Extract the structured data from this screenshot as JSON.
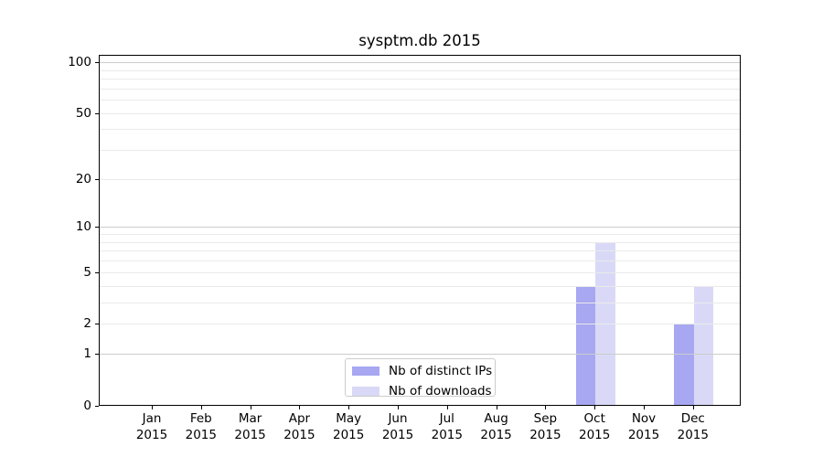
{
  "title": "sysptm.db 2015",
  "chart_data": {
    "type": "bar",
    "title": "sysptm.db 2015",
    "xlabel": "",
    "ylabel": "",
    "categories": [
      {
        "month": "Jan",
        "year": "2015"
      },
      {
        "month": "Feb",
        "year": "2015"
      },
      {
        "month": "Mar",
        "year": "2015"
      },
      {
        "month": "Apr",
        "year": "2015"
      },
      {
        "month": "May",
        "year": "2015"
      },
      {
        "month": "Jun",
        "year": "2015"
      },
      {
        "month": "Jul",
        "year": "2015"
      },
      {
        "month": "Aug",
        "year": "2015"
      },
      {
        "month": "Sep",
        "year": "2015"
      },
      {
        "month": "Oct",
        "year": "2015"
      },
      {
        "month": "Nov",
        "year": "2015"
      },
      {
        "month": "Dec",
        "year": "2015"
      }
    ],
    "series": [
      {
        "name": "Nb of distinct IPs",
        "color": "#a7a7f2",
        "values": [
          0,
          0,
          0,
          0,
          0,
          0,
          0,
          0,
          0,
          4,
          0,
          2
        ]
      },
      {
        "name": "Nb of downloads",
        "color": "#d9d9f7",
        "values": [
          0,
          0,
          0,
          0,
          0,
          0,
          0,
          0,
          0,
          8,
          0,
          4
        ]
      }
    ],
    "y_axis": {
      "scale": "log10(1+y)",
      "ylim": [
        0,
        113
      ],
      "tick_labels": [
        "100",
        "50",
        "20",
        "10",
        "5",
        "2",
        "1",
        "0"
      ],
      "tick_values": [
        100,
        50,
        20,
        10,
        5,
        2,
        1,
        0
      ],
      "major_gridlines": [
        1,
        10,
        100
      ],
      "minor_gridlines": [
        2,
        3,
        4,
        5,
        6,
        7,
        8,
        9,
        20,
        30,
        40,
        50,
        60,
        70,
        80,
        90
      ]
    },
    "legend": {
      "position": "lower center"
    },
    "colors": {
      "major_grid": "#cccccc",
      "minor_grid": "#eaeaea",
      "axis": "#000000"
    }
  }
}
